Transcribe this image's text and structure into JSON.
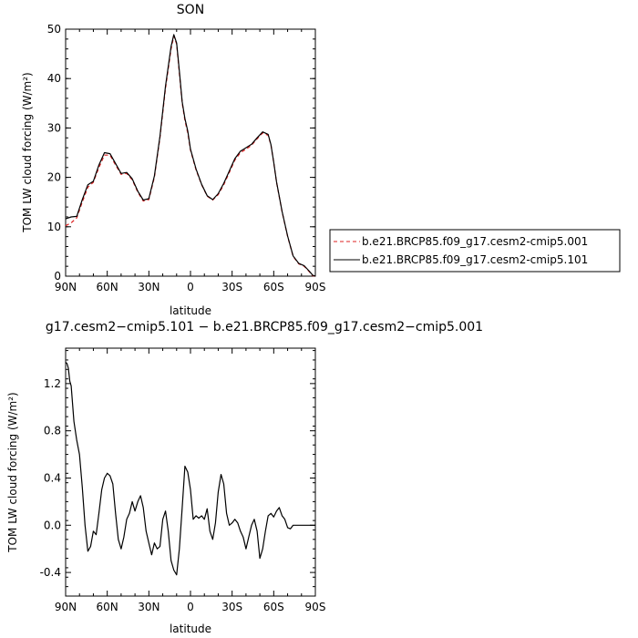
{
  "chart_data": [
    {
      "type": "line",
      "title": "SON",
      "xlabel": "latitude",
      "ylabel": "TOM LW cloud forcing (W/m²)",
      "xlim": [
        90,
        -90
      ],
      "ylim": [
        0,
        50
      ],
      "x_tick_labels": [
        "90N",
        "60N",
        "30N",
        "0",
        "30S",
        "60S",
        "90S"
      ],
      "x_tick_values": [
        90,
        60,
        30,
        0,
        -30,
        -60,
        -90
      ],
      "y_tick_values": [
        0,
        10,
        20,
        30,
        40,
        50
      ],
      "legend": {
        "position": "right",
        "entries": [
          {
            "label": "b.e21.BRCP85.f09_g17.cesm2-cmip5.001",
            "color": "#dd2222",
            "dash": "dashed"
          },
          {
            "label": "b.e21.BRCP85.f09_g17.cesm2-cmip5.101",
            "color": "#000000",
            "dash": "solid"
          }
        ]
      },
      "series": [
        {
          "name": "b.e21.BRCP85.f09_g17.cesm2-cmip5.001",
          "color": "#dd2222",
          "dash": "dashed",
          "x": [
            90,
            86,
            82,
            78,
            74,
            70,
            66,
            62,
            58,
            54,
            50,
            46,
            42,
            38,
            34,
            30,
            26,
            22,
            18,
            14,
            12,
            10,
            8,
            6,
            4,
            2,
            0,
            -4,
            -8,
            -12,
            -16,
            -20,
            -24,
            -28,
            -32,
            -36,
            -40,
            -44,
            -48,
            -52,
            -56,
            -58,
            -60,
            -62,
            -66,
            -70,
            -74,
            -78,
            -82,
            -86,
            -88,
            -90
          ],
          "y": [
            10.2,
            10.8,
            11.8,
            15.0,
            18.0,
            19.0,
            22.0,
            24.5,
            24.5,
            22.5,
            20.6,
            20.8,
            19.5,
            17.0,
            15.2,
            15.5,
            20.0,
            28.0,
            38.0,
            46.0,
            48.6,
            47.0,
            41.0,
            35.0,
            31.5,
            29.0,
            25.5,
            21.5,
            18.5,
            16.2,
            15.4,
            16.5,
            18.5,
            21.0,
            23.5,
            25.0,
            25.7,
            26.5,
            27.8,
            29.0,
            28.5,
            26.5,
            23.0,
            19.0,
            13.0,
            8.0,
            4.0,
            2.5,
            2.0,
            0.8,
            0.1,
            0.0
          ]
        },
        {
          "name": "b.e21.BRCP85.f09_g17.cesm2-cmip5.101",
          "color": "#000000",
          "dash": "solid",
          "x": [
            90,
            86,
            82,
            78,
            74,
            70,
            66,
            62,
            58,
            54,
            50,
            46,
            42,
            38,
            34,
            30,
            26,
            22,
            18,
            14,
            12,
            10,
            8,
            6,
            4,
            2,
            0,
            -4,
            -8,
            -12,
            -16,
            -20,
            -24,
            -28,
            -32,
            -36,
            -40,
            -44,
            -48,
            -52,
            -56,
            -58,
            -60,
            -62,
            -66,
            -70,
            -74,
            -78,
            -82,
            -86,
            -88,
            -90
          ],
          "y": [
            11.6,
            12.0,
            12.1,
            15.5,
            18.5,
            19.2,
            22.5,
            25.0,
            24.8,
            22.8,
            20.8,
            21.0,
            19.7,
            17.2,
            15.4,
            15.7,
            20.3,
            28.3,
            38.5,
            46.5,
            48.9,
            47.2,
            41.5,
            35.3,
            31.9,
            29.4,
            25.7,
            21.7,
            18.6,
            16.3,
            15.5,
            16.7,
            18.8,
            21.3,
            23.8,
            25.3,
            26.0,
            26.7,
            28.0,
            29.2,
            28.7,
            26.6,
            23.1,
            19.1,
            13.1,
            8.1,
            4.1,
            2.6,
            2.1,
            0.9,
            0.2,
            0.0
          ]
        }
      ]
    },
    {
      "type": "line",
      "title": "g17.cesm2−cmip5.101 − b.e21.BRCP85.f09_g17.cesm2−cmip5.001",
      "xlabel": "latitude",
      "ylabel": "TOM LW cloud forcing (W/m²)",
      "xlim": [
        90,
        -90
      ],
      "ylim": [
        -0.6,
        1.5
      ],
      "x_tick_labels": [
        "90N",
        "60N",
        "30N",
        "0",
        "30S",
        "60S",
        "90S"
      ],
      "x_tick_values": [
        90,
        60,
        30,
        0,
        -30,
        -60,
        -90
      ],
      "y_tick_labels": [
        "-0.4",
        "0.0",
        "0.4",
        "0.8",
        "1.2"
      ],
      "y_tick_values": [
        -0.4,
        0.0,
        0.4,
        0.8,
        1.2
      ],
      "series": [
        {
          "color": "#000000",
          "x": [
            90,
            89,
            88,
            87,
            86,
            84,
            82,
            80,
            78,
            76,
            74,
            72,
            70,
            68,
            66,
            64,
            62,
            60,
            58,
            56,
            54,
            52,
            50,
            48,
            46,
            44,
            42,
            40,
            38,
            36,
            34,
            32,
            30,
            28,
            26,
            24,
            22,
            20,
            18,
            16,
            14,
            12,
            10,
            8,
            6,
            4,
            2,
            0,
            -2,
            -4,
            -6,
            -8,
            -10,
            -12,
            -14,
            -16,
            -18,
            -20,
            -22,
            -24,
            -26,
            -28,
            -30,
            -32,
            -34,
            -36,
            -38,
            -40,
            -42,
            -44,
            -46,
            -48,
            -50,
            -52,
            -54,
            -56,
            -58,
            -60,
            -62,
            -64,
            -66,
            -68,
            -70,
            -72,
            -74,
            -76,
            -78,
            -80,
            -82,
            -84,
            -86,
            -88,
            -90
          ],
          "y": [
            1.38,
            1.37,
            1.33,
            1.22,
            1.18,
            0.88,
            0.72,
            0.6,
            0.32,
            0.0,
            -0.22,
            -0.18,
            -0.05,
            -0.08,
            0.1,
            0.3,
            0.4,
            0.44,
            0.42,
            0.35,
            0.1,
            -0.12,
            -0.2,
            -0.1,
            0.05,
            0.1,
            0.2,
            0.12,
            0.2,
            0.25,
            0.15,
            -0.05,
            -0.15,
            -0.25,
            -0.15,
            -0.2,
            -0.18,
            0.05,
            0.12,
            -0.05,
            -0.3,
            -0.38,
            -0.42,
            -0.2,
            0.15,
            0.5,
            0.45,
            0.3,
            0.05,
            0.08,
            0.06,
            0.08,
            0.05,
            0.14,
            -0.05,
            -0.12,
            0.02,
            0.28,
            0.43,
            0.35,
            0.1,
            0.0,
            0.02,
            0.05,
            0.02,
            -0.05,
            -0.1,
            -0.2,
            -0.1,
            0.0,
            0.05,
            -0.05,
            -0.28,
            -0.2,
            -0.05,
            0.08,
            0.1,
            0.07,
            0.12,
            0.15,
            0.08,
            0.05,
            -0.02,
            -0.03,
            0.0,
            0.0,
            0.0,
            0.0,
            0.0,
            0.0,
            0.0,
            0.0,
            0.0
          ]
        }
      ]
    }
  ]
}
